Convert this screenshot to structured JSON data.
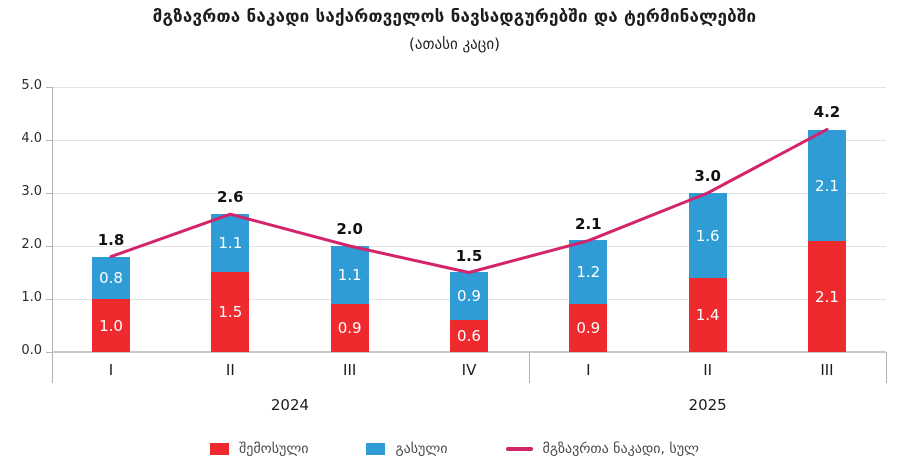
{
  "title": "მგზავრთა ნაკადი საქართველოს ნავსადგურებში და ტერმინალებში",
  "subtitle": "(ათასი კაცი)",
  "colors": {
    "incoming": "#EE2A2E",
    "outgoing": "#2F9CD6",
    "line": "#D3246B"
  },
  "legend": [
    {
      "label": "შემოსული",
      "color_key": "incoming"
    },
    {
      "label": "გასული",
      "color_key": "outgoing"
    },
    {
      "label": "მგზავრთა ნაკადი, სულ",
      "color_key": "line"
    }
  ],
  "chart_data": {
    "type": "bar",
    "stacked": true,
    "title": "მგზავრთა ნაკადი საქართველოს ნავსადგურებში და ტერმინალებში",
    "subtitle": "(ათასი კაცი)",
    "categories": [
      "I",
      "II",
      "III",
      "IV",
      "I",
      "II",
      "III"
    ],
    "year_groups": [
      {
        "label": "2024",
        "span": 4
      },
      {
        "label": "2025",
        "span": 3
      }
    ],
    "series": [
      {
        "name": "შემოსული",
        "values": [
          1.0,
          1.5,
          0.9,
          0.6,
          0.9,
          1.4,
          2.1
        ]
      },
      {
        "name": "გასული",
        "values": [
          0.8,
          1.1,
          1.1,
          0.9,
          1.2,
          1.6,
          2.1
        ]
      }
    ],
    "line_series": {
      "name": "მგზავრთა ნაკადი, სულ",
      "values": [
        1.8,
        2.6,
        2.0,
        1.5,
        2.1,
        3.0,
        4.2
      ]
    },
    "ylim": [
      0,
      5
    ],
    "ytick_step": 1.0,
    "yticks": [
      "0.0",
      "1.0",
      "2.0",
      "3.0",
      "4.0",
      "5.0"
    ],
    "grid": true,
    "legend_position": "bottom"
  }
}
